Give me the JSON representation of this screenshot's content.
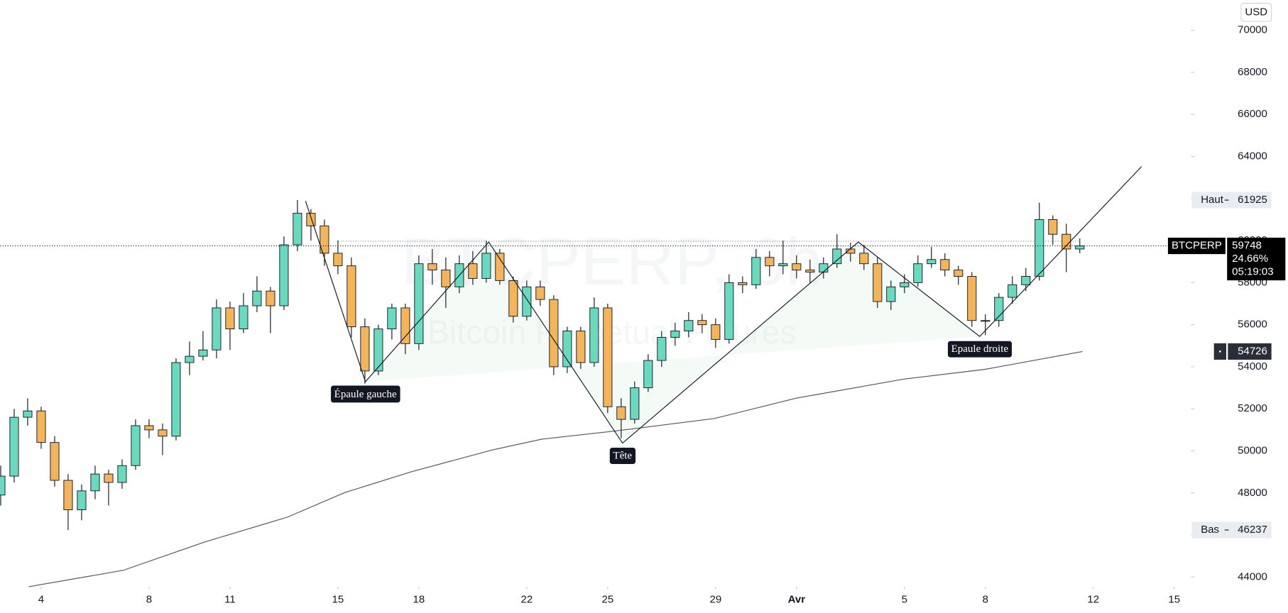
{
  "chart_data": {
    "type": "candlestick",
    "currency": "USD",
    "watermark": "BTCPERP, 6h",
    "watermark_subtitle": "Bitcoin Perpetual Futures",
    "xlim": [
      -1.52,
      42.62
    ],
    "xticks": [
      {
        "value": 0,
        "label": "4"
      },
      {
        "value": 4,
        "label": "8"
      },
      {
        "value": 7,
        "label": "11"
      },
      {
        "value": 11,
        "label": "15"
      },
      {
        "value": 14,
        "label": "18"
      },
      {
        "value": 18,
        "label": "22"
      },
      {
        "value": 21,
        "label": "25"
      },
      {
        "value": 25,
        "label": "29"
      },
      {
        "value": 28,
        "label": "Avr"
      },
      {
        "value": 32,
        "label": "5"
      },
      {
        "value": 35,
        "label": "8"
      },
      {
        "value": 39,
        "label": "12"
      },
      {
        "value": 42,
        "label": "15"
      }
    ],
    "ylim": [
      43540,
      71440
    ],
    "yticks": [
      44000,
      46000,
      48000,
      50000,
      52000,
      54000,
      56000,
      58000,
      60000,
      62000,
      64000,
      66000,
      68000,
      70000
    ],
    "up_color": "#6ad9bd",
    "down_color": "#f2b55c",
    "candles": {
      "x": [
        -1.5,
        -1,
        -0.5,
        0,
        0.5,
        1,
        1.5,
        2,
        2.5,
        3,
        3.5,
        4,
        4.5,
        5,
        5.5,
        6,
        6.5,
        7,
        7.5,
        8,
        8.5,
        9,
        9.5,
        10,
        10.5,
        11,
        11.5,
        12,
        12.5,
        13,
        13.5,
        14,
        14.5,
        15,
        15.5,
        16,
        16.5,
        17,
        17.5,
        18,
        18.5,
        19,
        19.5,
        20,
        20.5,
        21,
        21.5,
        22,
        22.5,
        23,
        23.5,
        24,
        24.5,
        25,
        25.5,
        26,
        26.5,
        27,
        27.5,
        28,
        28.5,
        29,
        29.5,
        30,
        30.5,
        31,
        31.5,
        32,
        32.5,
        33,
        33.5,
        34,
        34.5,
        35,
        35.5,
        36,
        36.5,
        37,
        37.5,
        38,
        38.5
      ],
      "open": [
        47900,
        48800,
        51600,
        51900,
        50400,
        48600,
        47200,
        48100,
        48900,
        48500,
        49300,
        51200,
        51000,
        50700,
        54200,
        54500,
        54800,
        56800,
        55800,
        56900,
        57600,
        56900,
        59800,
        61300,
        60700,
        59400,
        58800,
        55900,
        53800,
        55800,
        56800,
        55100,
        58900,
        58600,
        57800,
        58900,
        58200,
        59400,
        58100,
        56400,
        57800,
        57200,
        54000,
        55700,
        54200,
        56800,
        52100,
        51500,
        53000,
        54300,
        55400,
        55700,
        56200,
        56000,
        55300,
        58000,
        57900,
        59200,
        58800,
        58900,
        58600,
        58500,
        58900,
        59600,
        59400,
        58900,
        57100,
        57800,
        58000,
        58900,
        59100,
        58600,
        58300,
        56200,
        56200,
        57300,
        57900,
        58300,
        61000,
        60300,
        59600
      ],
      "high": [
        49300,
        52000,
        52500,
        52100,
        50700,
        48900,
        48400,
        49300,
        49100,
        49600,
        51500,
        51500,
        51300,
        54400,
        55200,
        55700,
        57200,
        57100,
        57500,
        58300,
        57800,
        60200,
        61925,
        61500,
        61000,
        60000,
        59200,
        56300,
        56000,
        57000,
        57000,
        59300,
        59600,
        59200,
        59300,
        59500,
        60000,
        59600,
        58300,
        58100,
        58100,
        57400,
        55900,
        55900,
        57300,
        57000,
        52500,
        53300,
        54600,
        55700,
        56100,
        56600,
        56500,
        56300,
        58400,
        58300,
        59600,
        59500,
        60000,
        59300,
        59100,
        59200,
        60300,
        59900,
        59800,
        59200,
        58100,
        58400,
        59300,
        59700,
        59400,
        58800,
        58500,
        56500,
        57500,
        58300,
        58700,
        61800,
        61200,
        60800,
        60100
      ],
      "low": [
        47400,
        48500,
        51200,
        50100,
        48300,
        46237,
        46700,
        47700,
        47400,
        48200,
        49100,
        50600,
        49800,
        50500,
        53600,
        54300,
        54400,
        54800,
        55600,
        56600,
        55600,
        56700,
        59500,
        60000,
        58800,
        58400,
        55400,
        53200,
        53600,
        55300,
        54600,
        54800,
        57900,
        56800,
        57500,
        57900,
        58000,
        57900,
        56100,
        56200,
        56900,
        53600,
        53700,
        53900,
        54000,
        51800,
        50600,
        51300,
        52800,
        54000,
        55000,
        55400,
        55600,
        54900,
        55100,
        57500,
        57700,
        58300,
        58400,
        58200,
        58000,
        58200,
        58700,
        59000,
        58600,
        56800,
        56700,
        57500,
        57800,
        58700,
        58300,
        57900,
        55900,
        55500,
        55900,
        57000,
        57600,
        58100,
        59800,
        58500,
        59400
      ],
      "close": [
        48800,
        51600,
        51900,
        50400,
        48600,
        47200,
        48100,
        48900,
        48500,
        49300,
        51200,
        51000,
        50700,
        54200,
        54500,
        54800,
        56800,
        55800,
        56900,
        57600,
        56900,
        59800,
        61300,
        60700,
        59400,
        58800,
        55900,
        53800,
        55800,
        56800,
        55100,
        58900,
        58600,
        57800,
        58900,
        58200,
        59400,
        58100,
        56400,
        57800,
        57200,
        54000,
        55700,
        54200,
        56800,
        52100,
        51500,
        53000,
        54300,
        55400,
        55700,
        56200,
        56000,
        55300,
        58000,
        57900,
        59200,
        58800,
        58900,
        58600,
        58500,
        58900,
        59600,
        59400,
        58900,
        57100,
        57800,
        58000,
        58900,
        59100,
        58600,
        58300,
        56200,
        56200,
        57300,
        57900,
        58300,
        61000,
        60300,
        59600,
        59748
      ]
    },
    "ma": {
      "color": "#555555",
      "x": [
        -0.46,
        3.04,
        6.09,
        9.13,
        11.26,
        13.7,
        16.74,
        18.57,
        21.31,
        24.96,
        28.0,
        31.96,
        35.0,
        38.6
      ],
      "values": [
        43540,
        44320,
        45680,
        46850,
        48020,
        49000,
        50050,
        50560,
        50950,
        51540,
        52510,
        53410,
        53880,
        54726
      ]
    },
    "pattern": {
      "color": "#131722",
      "x": [
        9.8,
        12.02,
        16.59,
        21.55,
        30.29,
        34.79,
        40.79
      ],
      "values": [
        61880,
        53290,
        59930,
        50370,
        59930,
        55440,
        63520
      ],
      "labels": [
        null,
        "Épaule gauche",
        null,
        "Tête",
        null,
        "Epaule droite",
        null
      ]
    },
    "neckline": 59970,
    "high_tag": {
      "label": "Haut",
      "value": 61925
    },
    "low_tag": {
      "label": "Bas",
      "value": 46237
    },
    "price_tag": {
      "name": "BTCPERP",
      "value": 59748,
      "change": "24.66%",
      "countdown": "05:19:03"
    }
  }
}
